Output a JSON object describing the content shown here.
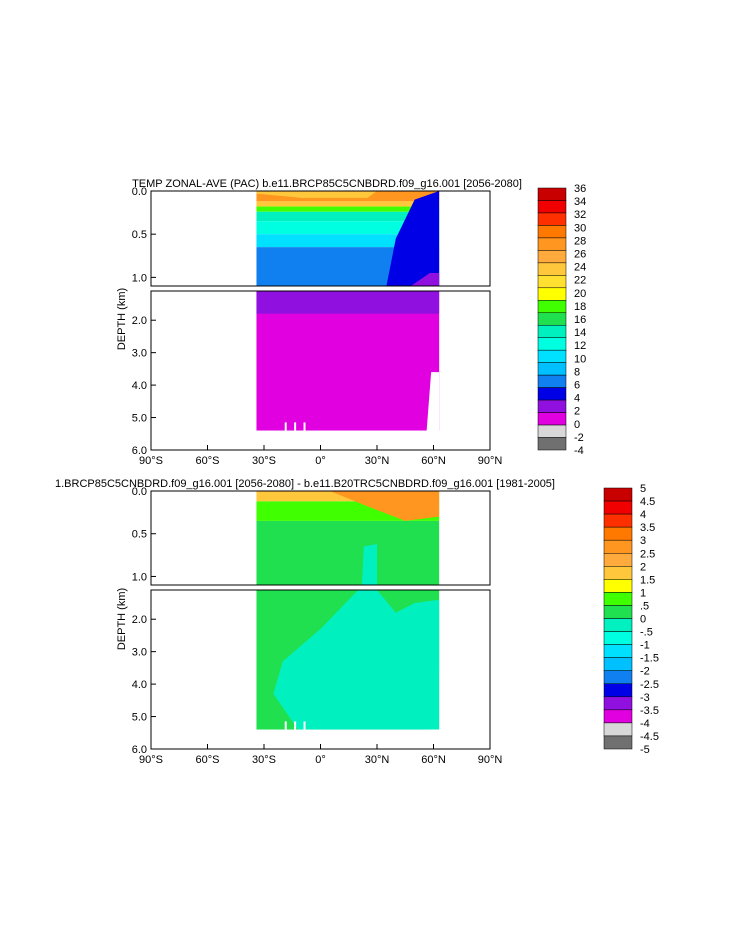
{
  "chart_data": [
    {
      "type": "heatmap",
      "title": "TEMP ZONAL-AVE (PAC) b.e11.BRCP85C5CNBDRD.f09_g16.001 [2056-2080]",
      "ylabel": "DEPTH (km)",
      "x_ticks": [
        "90°S",
        "60°S",
        "30°S",
        "0°",
        "30°N",
        "60°N",
        "90°N"
      ],
      "x_tick_values": [
        -90,
        -60,
        -30,
        0,
        30,
        60,
        90
      ],
      "upper_y_ticks": [
        "0.0",
        "0.5",
        "1.0"
      ],
      "upper_y_tick_values": [
        0.0,
        0.5,
        1.0
      ],
      "lower_y_ticks": [
        "2.0",
        "3.0",
        "4.0",
        "5.0",
        "6.0"
      ],
      "lower_y_tick_values": [
        2.0,
        3.0,
        4.0,
        5.0,
        6.0
      ],
      "ylim_upper": [
        0,
        1.1
      ],
      "ylim_lower": [
        1.1,
        6.0
      ],
      "data_lat_range": [
        -34,
        63
      ],
      "colorbar_labels": [
        "36",
        "34",
        "32",
        "30",
        "28",
        "26",
        "24",
        "22",
        "20",
        "18",
        "16",
        "14",
        "12",
        "10",
        "8",
        "6",
        "4",
        "2",
        "0",
        "-2",
        "-4"
      ],
      "colorbar_colors": [
        "#c80000",
        "#f00000",
        "#ff3000",
        "#ff7800",
        "#ff9620",
        "#ffaa3c",
        "#ffc83c",
        "#ffe030",
        "#ffff00",
        "#40ff00",
        "#20e050",
        "#00f0c0",
        "#00ffe0",
        "#00e0ff",
        "#00c0ff",
        "#1080f0",
        "#0000e6",
        "#9010e0",
        "#e000e0",
        "#d8d8d8",
        "#707070"
      ]
    },
    {
      "type": "heatmap",
      "title": "1.BRCP85C5CNBDRD.f09_g16.001 [2056-2080] - b.e11.B20TRC5CNBDRD.f09_g16.001 [1981-2005]",
      "ylabel": "DEPTH (km)",
      "x_ticks": [
        "90°S",
        "60°S",
        "30°S",
        "0°",
        "30°N",
        "60°N",
        "90°N"
      ],
      "x_tick_values": [
        -90,
        -60,
        -30,
        0,
        30,
        60,
        90
      ],
      "upper_y_ticks": [
        "0.0",
        "0.5",
        "1.0"
      ],
      "upper_y_tick_values": [
        0.0,
        0.5,
        1.0
      ],
      "lower_y_ticks": [
        "2.0",
        "3.0",
        "4.0",
        "5.0",
        "6.0"
      ],
      "lower_y_tick_values": [
        2.0,
        3.0,
        4.0,
        5.0,
        6.0
      ],
      "ylim_upper": [
        0,
        1.1
      ],
      "ylim_lower": [
        1.1,
        6.0
      ],
      "data_lat_range": [
        -34,
        63
      ],
      "colorbar_labels": [
        "5",
        "4.5",
        "4",
        "3.5",
        "3",
        "2.5",
        "2",
        "1.5",
        "1",
        ".5",
        "0",
        "-.5",
        "-1",
        "-1.5",
        "-2",
        "-2.5",
        "-3",
        "-3.5",
        "-4",
        "-4.5",
        "-5"
      ],
      "colorbar_colors": [
        "#c80000",
        "#f00000",
        "#ff3000",
        "#ff7800",
        "#ff9620",
        "#ffaa3c",
        "#ffc83c",
        "#ffff00",
        "#40ff00",
        "#20e050",
        "#00f0c0",
        "#00ffe0",
        "#00e0ff",
        "#00c0ff",
        "#1080f0",
        "#0000e6",
        "#9010e0",
        "#e000e0",
        "#d8d8d8",
        "#707070"
      ]
    }
  ]
}
